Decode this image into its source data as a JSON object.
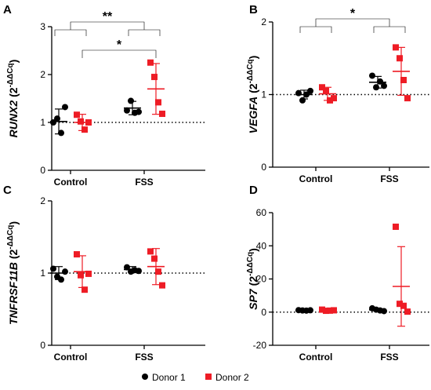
{
  "colors": {
    "donor1": "#000000",
    "donor2": "#ee1c25",
    "axis": "#000000"
  },
  "legend": [
    {
      "label": "Donor 1",
      "color": "#000000"
    },
    {
      "label": "Donor 2",
      "color": "#ee1c25"
    }
  ],
  "chart_data": [
    {
      "panel": "A",
      "type": "scatter",
      "ylabel_gene": "RUNX2",
      "ylabel_units": "(2",
      "ylabel_exp": "-ΔΔCq",
      "ylabel_close": ")",
      "categories": [
        "Control",
        "FSS"
      ],
      "ylim": [
        0,
        3
      ],
      "yticks": [
        0,
        1,
        2,
        3
      ],
      "reference_line": 1,
      "series": [
        {
          "name": "Donor 1",
          "points": [
            [
              1.0,
              1.08,
              0.78,
              1.32
            ],
            [
              1.25,
              1.45,
              1.2,
              1.22
            ]
          ],
          "mean": [
            1.02,
            1.3
          ],
          "sd": [
            0.26,
            0.14
          ]
        },
        {
          "name": "Donor 2",
          "points": [
            [
              1.16,
              1.02,
              0.85,
              1.0
            ],
            [
              2.25,
              1.95,
              1.42,
              1.18
            ]
          ],
          "mean": [
            1.0,
            1.7
          ],
          "sd": [
            0.17,
            0.53
          ]
        }
      ],
      "significance": [
        {
          "label": "**",
          "type": "grouped"
        },
        {
          "label": "*",
          "type": "donor2"
        }
      ]
    },
    {
      "panel": "B",
      "type": "scatter",
      "ylabel_gene": "VEGFA",
      "ylabel_units": "(2",
      "ylabel_exp": "-ΔΔCq",
      "ylabel_close": ")",
      "categories": [
        "Control",
        "FSS"
      ],
      "ylim": [
        0,
        2
      ],
      "yticks": [
        0,
        1,
        2
      ],
      "reference_line": 1,
      "series": [
        {
          "name": "Donor 1",
          "points": [
            [
              1.02,
              0.92,
              1.0,
              1.05
            ],
            [
              1.26,
              1.1,
              1.18,
              1.12
            ]
          ],
          "mean": [
            1.0,
            1.17
          ],
          "sd": [
            0.06,
            0.08
          ]
        },
        {
          "name": "Donor 2",
          "points": [
            [
              1.1,
              1.05,
              0.92,
              0.95
            ],
            [
              1.65,
              1.5,
              1.2,
              0.95
            ]
          ],
          "mean": [
            1.01,
            1.32
          ],
          "sd": [
            0.09,
            0.33
          ]
        }
      ],
      "significance": [
        {
          "label": "*",
          "type": "grouped"
        }
      ]
    },
    {
      "panel": "C",
      "type": "scatter",
      "ylabel_gene": "TNFRSF11B",
      "ylabel_units": "(2",
      "ylabel_exp": "-ΔΔCq",
      "ylabel_close": ")",
      "categories": [
        "Control",
        "FSS"
      ],
      "ylim": [
        0,
        2
      ],
      "yticks": [
        0,
        1,
        2
      ],
      "reference_line": 1,
      "series": [
        {
          "name": "Donor 1",
          "points": [
            [
              1.06,
              0.95,
              0.91,
              1.02
            ],
            [
              1.08,
              1.02,
              1.04,
              1.03
            ]
          ],
          "mean": [
            1.0,
            1.05
          ],
          "sd": [
            0.09,
            0.04
          ]
        },
        {
          "name": "Donor 2",
          "points": [
            [
              1.26,
              0.97,
              0.77,
              0.99
            ],
            [
              1.3,
              1.2,
              1.02,
              0.83
            ]
          ],
          "mean": [
            1.02,
            1.09
          ],
          "sd": [
            0.22,
            0.25
          ]
        }
      ],
      "significance": []
    },
    {
      "panel": "D",
      "type": "scatter",
      "ylabel_gene": "SP7",
      "ylabel_units": "(2",
      "ylabel_exp": "-ΔΔCq",
      "ylabel_close": ")",
      "categories": [
        "Control",
        "FSS"
      ],
      "ylim": [
        -20,
        60
      ],
      "yticks": [
        -20,
        0,
        20,
        40,
        60
      ],
      "reference_line": 0,
      "series": [
        {
          "name": "Donor 1",
          "points": [
            [
              1.2,
              1.0,
              0.9,
              1.1
            ],
            [
              2.3,
              1.5,
              1.0,
              0.6
            ]
          ],
          "mean": [
            1.0,
            1.4
          ],
          "sd": [
            0.2,
            0.7
          ]
        },
        {
          "name": "Donor 2",
          "points": [
            [
              1.5,
              0.8,
              0.9,
              1.1
            ],
            [
              51.5,
              5.0,
              3.8,
              0.3
            ]
          ],
          "mean": [
            1.0,
            15.5
          ],
          "sd": [
            0.4,
            24.0
          ]
        }
      ],
      "significance": []
    }
  ]
}
